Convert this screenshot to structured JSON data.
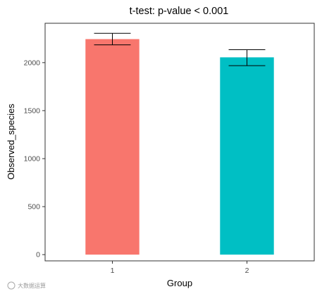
{
  "chart_data": {
    "type": "bar",
    "title": "t-test: p-value < 0.001",
    "xlabel": "Group",
    "ylabel": "Observed_species",
    "categories": [
      "1",
      "2"
    ],
    "values": [
      2245,
      2055
    ],
    "error": [
      {
        "low": 2185,
        "high": 2305
      },
      {
        "low": 1968,
        "high": 2135
      }
    ],
    "colors": [
      "#F8766D",
      "#00BFC4"
    ],
    "ylim": [
      -65,
      2410
    ],
    "yticks": [
      0,
      500,
      1000,
      1500,
      2000
    ],
    "grid": false,
    "legend": "none"
  },
  "watermark": "大数据运算"
}
